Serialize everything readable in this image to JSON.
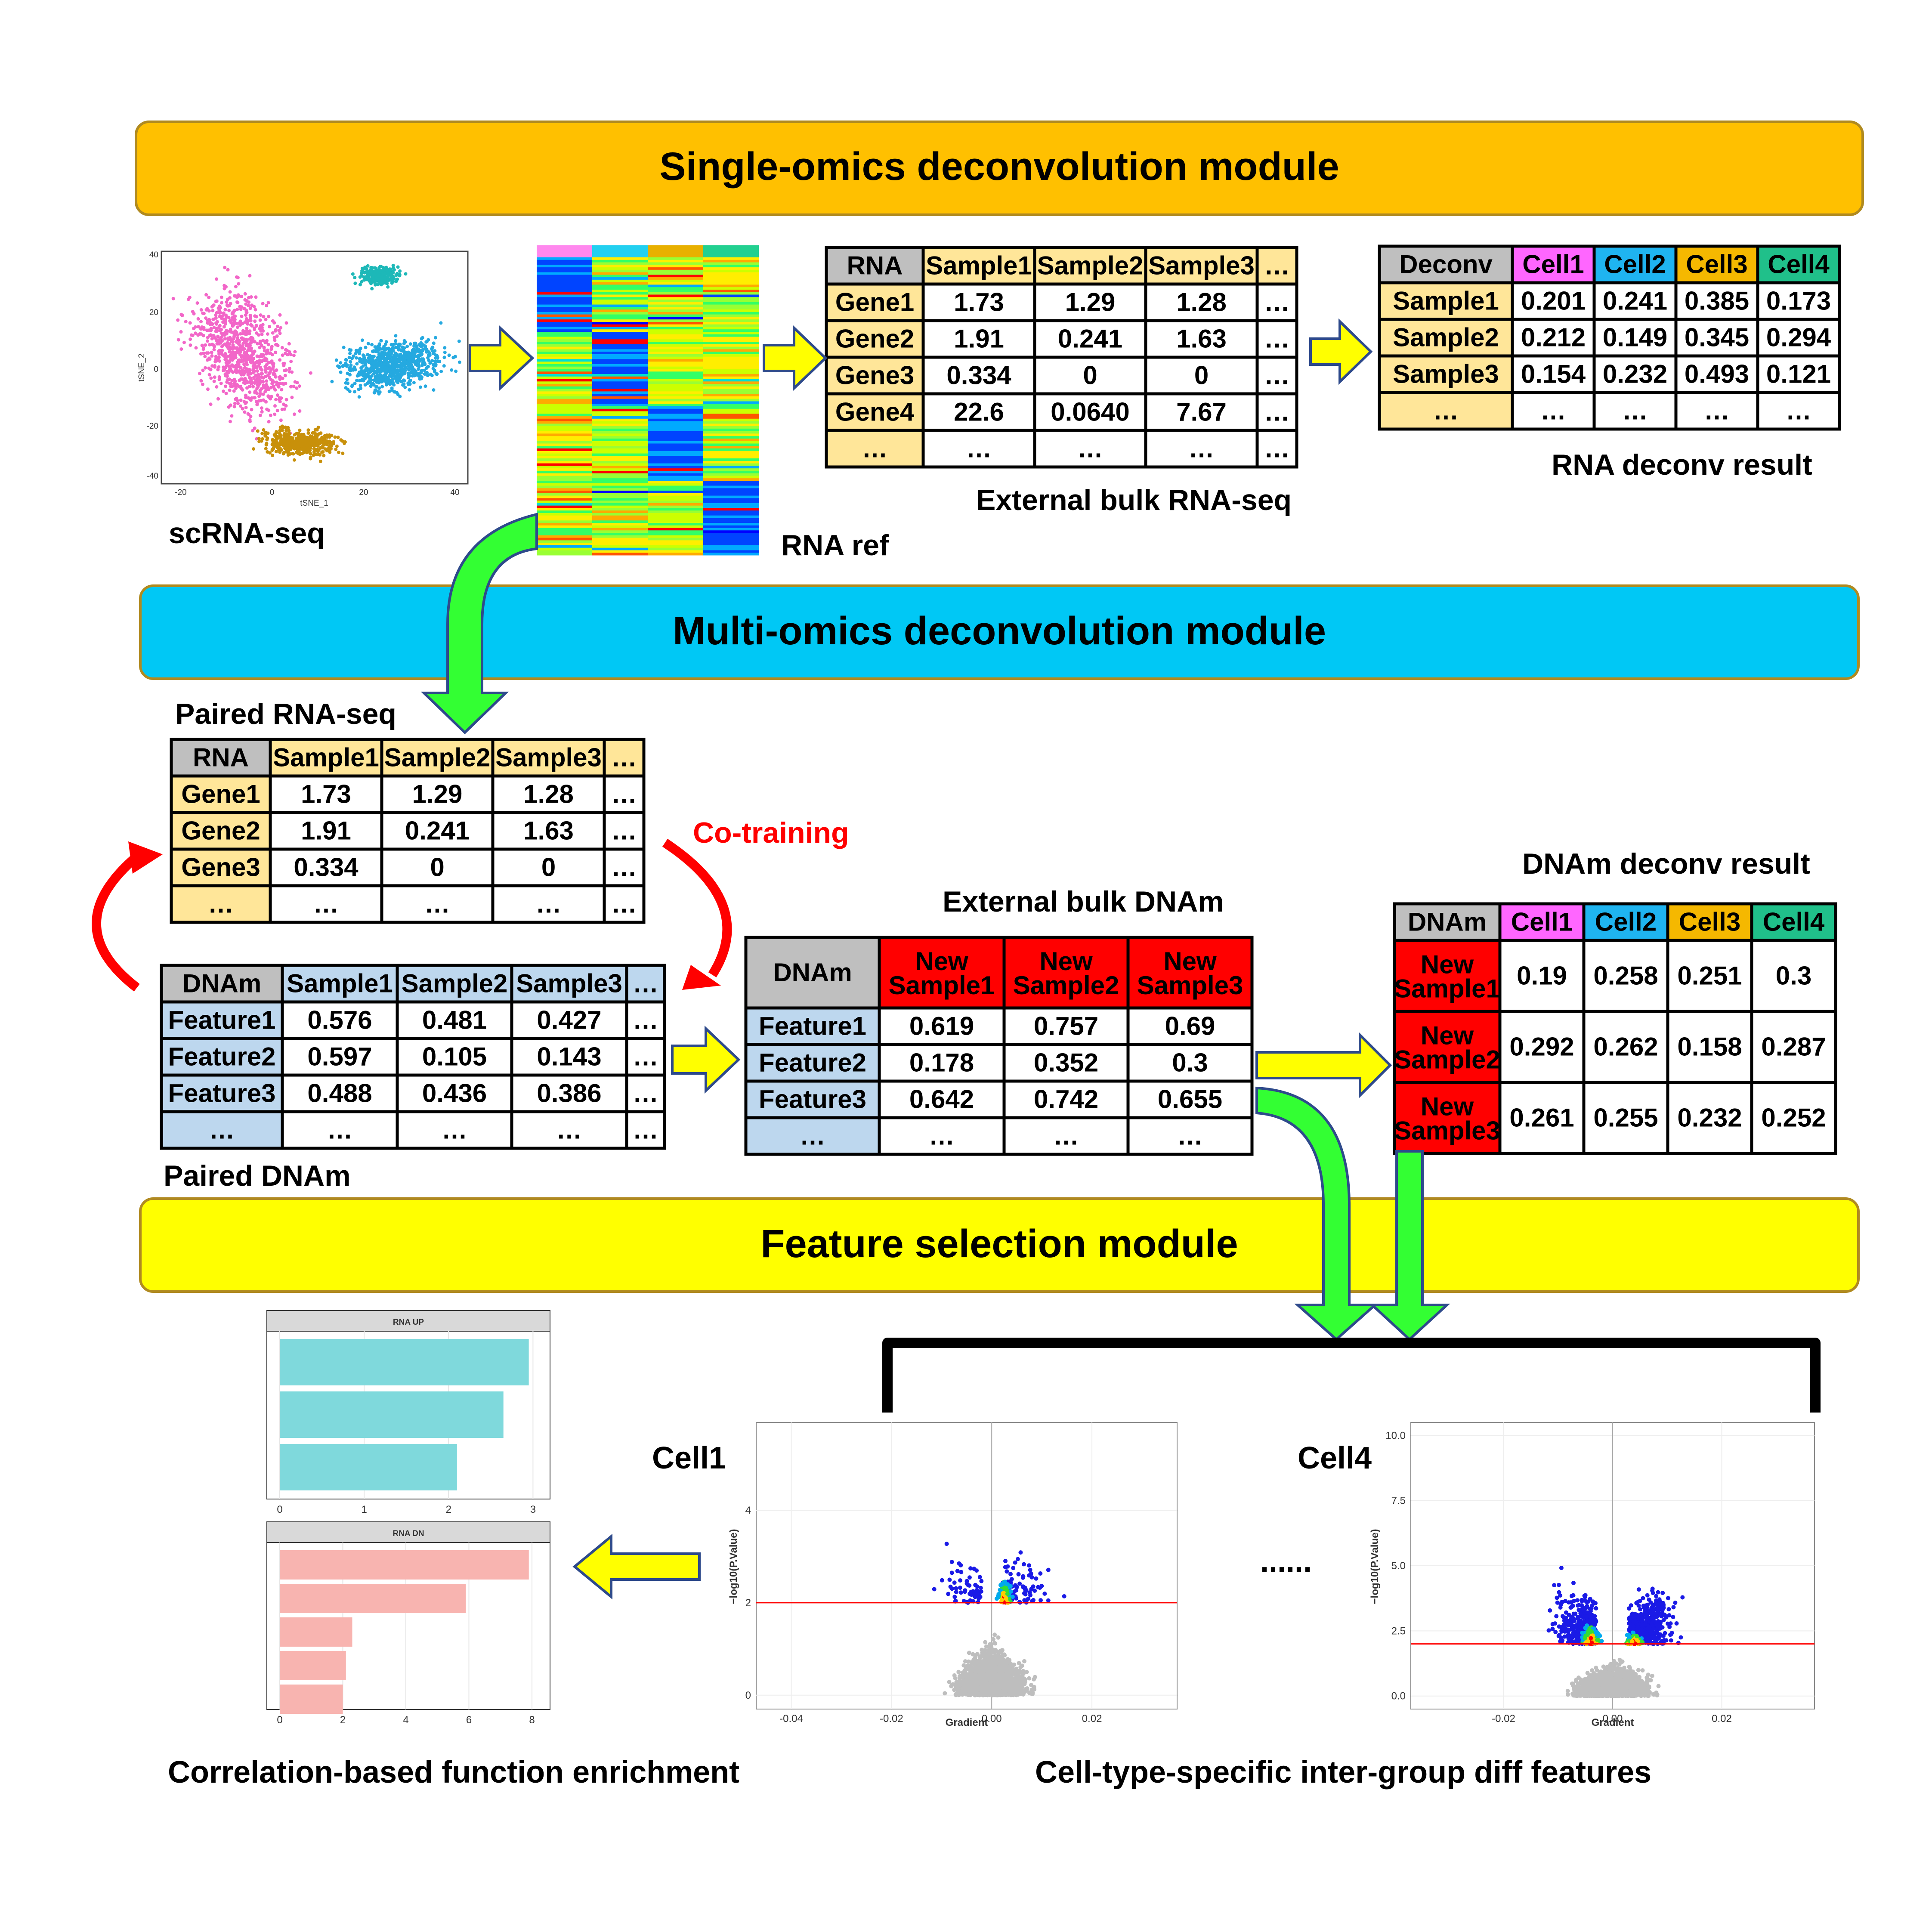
{
  "modules": {
    "single": {
      "title": "Single-omics deconvolution module",
      "color": "#FFC000"
    },
    "multi": {
      "title": "Multi-omics deconvolution module",
      "color": "#00C8F5"
    },
    "feature": {
      "title": "Feature selection module",
      "color": "#FFFF00"
    }
  },
  "labels": {
    "scrna": "scRNA-seq",
    "rna_ref": "RNA ref",
    "external_bulk_rna": "External bulk RNA-seq",
    "rna_deconv_result": "RNA deconv result",
    "paired_rna": "Paired RNA-seq",
    "co_training": "Co-training",
    "paired_dnam": "Paired DNAm",
    "external_bulk_dnam": "External bulk DNAm",
    "dnam_deconv_result": "DNAm deconv result",
    "cell1": "Cell1",
    "cell4": "Cell4",
    "ellipsis": "......",
    "corr_enrichment": "Correlation-based function enrichment",
    "diff_features": "Cell-type-specific inter-group diff features"
  },
  "colors": {
    "rna_header": "#FFE699",
    "dnam_header": "#BDD7EE",
    "corner": "#BFBFBF",
    "new_sample": "#FF0000",
    "cell1": "#FF66FF",
    "cell2": "#1FB4F0",
    "cell3": "#F5B800",
    "cell4": "#20C08A",
    "arrow_yellow": "#FFFF00",
    "arrow_green": "#33FF33",
    "arrow_red": "#FF0000"
  },
  "tables": {
    "external_rna": {
      "rows": [
        [
          "RNA",
          "Sample1",
          "Sample2",
          "Sample3",
          "..."
        ],
        [
          "Gene1",
          "1.73",
          "1.29",
          "1.28",
          "..."
        ],
        [
          "Gene2",
          "1.91",
          "0.241",
          "1.63",
          "..."
        ],
        [
          "Gene3",
          "0.334",
          "0",
          "0",
          "..."
        ],
        [
          "Gene4",
          "22.6",
          "0.0640",
          "7.67",
          "..."
        ],
        [
          "...",
          "...",
          "...",
          "...",
          "..."
        ]
      ]
    },
    "rna_deconv": {
      "rows": [
        [
          "Deconv",
          "Cell1",
          "Cell2",
          "Cell3",
          "Cell4"
        ],
        [
          "Sample1",
          "0.201",
          "0.241",
          "0.385",
          "0.173"
        ],
        [
          "Sample2",
          "0.212",
          "0.149",
          "0.345",
          "0.294"
        ],
        [
          "Sample3",
          "0.154",
          "0.232",
          "0.493",
          "0.121"
        ],
        [
          "...",
          "...",
          "...",
          "...",
          "..."
        ]
      ]
    },
    "paired_rna": {
      "rows": [
        [
          "RNA",
          "Sample1",
          "Sample2",
          "Sample3",
          "..."
        ],
        [
          "Gene1",
          "1.73",
          "1.29",
          "1.28",
          "..."
        ],
        [
          "Gene2",
          "1.91",
          "0.241",
          "1.63",
          "..."
        ],
        [
          "Gene3",
          "0.334",
          "0",
          "0",
          "..."
        ],
        [
          "...",
          "...",
          "...",
          "...",
          "..."
        ]
      ]
    },
    "paired_dnam": {
      "rows": [
        [
          "DNAm",
          "Sample1",
          "Sample2",
          "Sample3",
          "..."
        ],
        [
          "Feature1",
          "0.576",
          "0.481",
          "0.427",
          "..."
        ],
        [
          "Feature2",
          "0.597",
          "0.105",
          "0.143",
          "..."
        ],
        [
          "Feature3",
          "0.488",
          "0.436",
          "0.386",
          "..."
        ],
        [
          "...",
          "...",
          "...",
          "...",
          "..."
        ]
      ]
    },
    "external_dnam": {
      "rows": [
        [
          "DNAm",
          "New Sample1",
          "New Sample2",
          "New Sample3"
        ],
        [
          "Feature1",
          "0.619",
          "0.757",
          "0.69"
        ],
        [
          "Feature2",
          "0.178",
          "0.352",
          "0.3"
        ],
        [
          "Feature3",
          "0.642",
          "0.742",
          "0.655"
        ],
        [
          "...",
          "...",
          "...",
          "..."
        ]
      ]
    },
    "dnam_deconv": {
      "rows": [
        [
          "DNAm",
          "Cell1",
          "Cell2",
          "Cell3",
          "Cell4"
        ],
        [
          "New Sample1",
          "0.19",
          "0.258",
          "0.251",
          "0.3"
        ],
        [
          "New Sample2",
          "0.292",
          "0.262",
          "0.158",
          "0.287"
        ],
        [
          "New Sample3",
          "0.261",
          "0.255",
          "0.232",
          "0.252"
        ]
      ]
    }
  },
  "tsne": {
    "xlabel": "tSNE_1",
    "ylabel": "tSNE_2",
    "xticks": [
      "-20",
      "0",
      "20",
      "40"
    ],
    "yticks": [
      "40",
      "20",
      "0",
      "-20",
      "-40"
    ]
  },
  "heatmap": {
    "column_colors": [
      "#FF88EE",
      "#22D0F0",
      "#E8B000",
      "#22D090"
    ]
  },
  "enrichment": {
    "up": {
      "title": "RNA UP",
      "values": [
        2.95,
        2.65,
        2.1
      ],
      "ticks": [
        "0",
        "1",
        "2",
        "3"
      ],
      "max": 3.1,
      "color": "#7FD9DC"
    },
    "dn": {
      "title": "RNA DN",
      "values": [
        7.9,
        5.9,
        2.3,
        2.1,
        2.0
      ],
      "ticks": [
        "0",
        "2",
        "4",
        "6",
        "8"
      ],
      "max": 8.3,
      "color": "#F8B4B0"
    }
  },
  "volcano1": {
    "xlabel": "Gradient",
    "ylabel": "−log10(P.Value)",
    "xticks": [
      "-0.04",
      "-0.02",
      "0.00",
      "0.02"
    ],
    "yticks": [
      "0",
      "2",
      "4"
    ],
    "threshold": 2
  },
  "volcano4": {
    "xlabel": "Gradient",
    "ylabel": "−log10(P.Value)",
    "xticks": [
      "-0.02",
      "0.00",
      "0.02"
    ],
    "yticks": [
      "0.0",
      "2.5",
      "5.0",
      "7.5",
      "10.0"
    ],
    "threshold": 2
  }
}
